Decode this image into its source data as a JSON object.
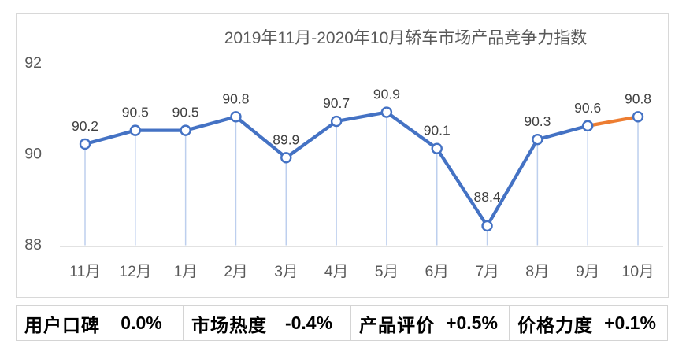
{
  "chart_data": {
    "type": "line",
    "title": "2019年11月-2020年10月轿车市场产品竞争力指数",
    "categories": [
      "11月",
      "12月",
      "1月",
      "2月",
      "3月",
      "4月",
      "5月",
      "6月",
      "7月",
      "8月",
      "9月",
      "10月"
    ],
    "values": [
      90.2,
      90.5,
      90.5,
      90.8,
      89.9,
      90.7,
      90.9,
      90.1,
      88.4,
      90.3,
      90.6,
      90.8
    ],
    "data_labels": [
      "90.2",
      "90.5",
      "90.5",
      "90.8",
      "89.9",
      "90.7",
      "90.9",
      "90.1",
      "88.4",
      "90.3",
      "90.6",
      "90.8"
    ],
    "xlabel": "",
    "ylabel": "",
    "y_ticks": [
      88,
      90,
      92
    ],
    "ylim": [
      88,
      92
    ],
    "grid": false,
    "legend": false,
    "line_color": "#4472C4",
    "last_segment_color": "#ED7D31",
    "marker_fill": "#FFFFFF",
    "drop_line_color": "#BDCFEE",
    "axis_color": "#D9D9D9",
    "data_label_color": "#404040",
    "tick_label_color": "#595959",
    "title_color": "#595959"
  },
  "footer": {
    "metrics": [
      {
        "label": "用户口碑",
        "value": "0.0%"
      },
      {
        "label": "市场热度",
        "value": "-0.4%"
      },
      {
        "label": "产品评价",
        "value": "+0.5%"
      },
      {
        "label": "价格力度",
        "value": "+0.1%"
      }
    ]
  }
}
